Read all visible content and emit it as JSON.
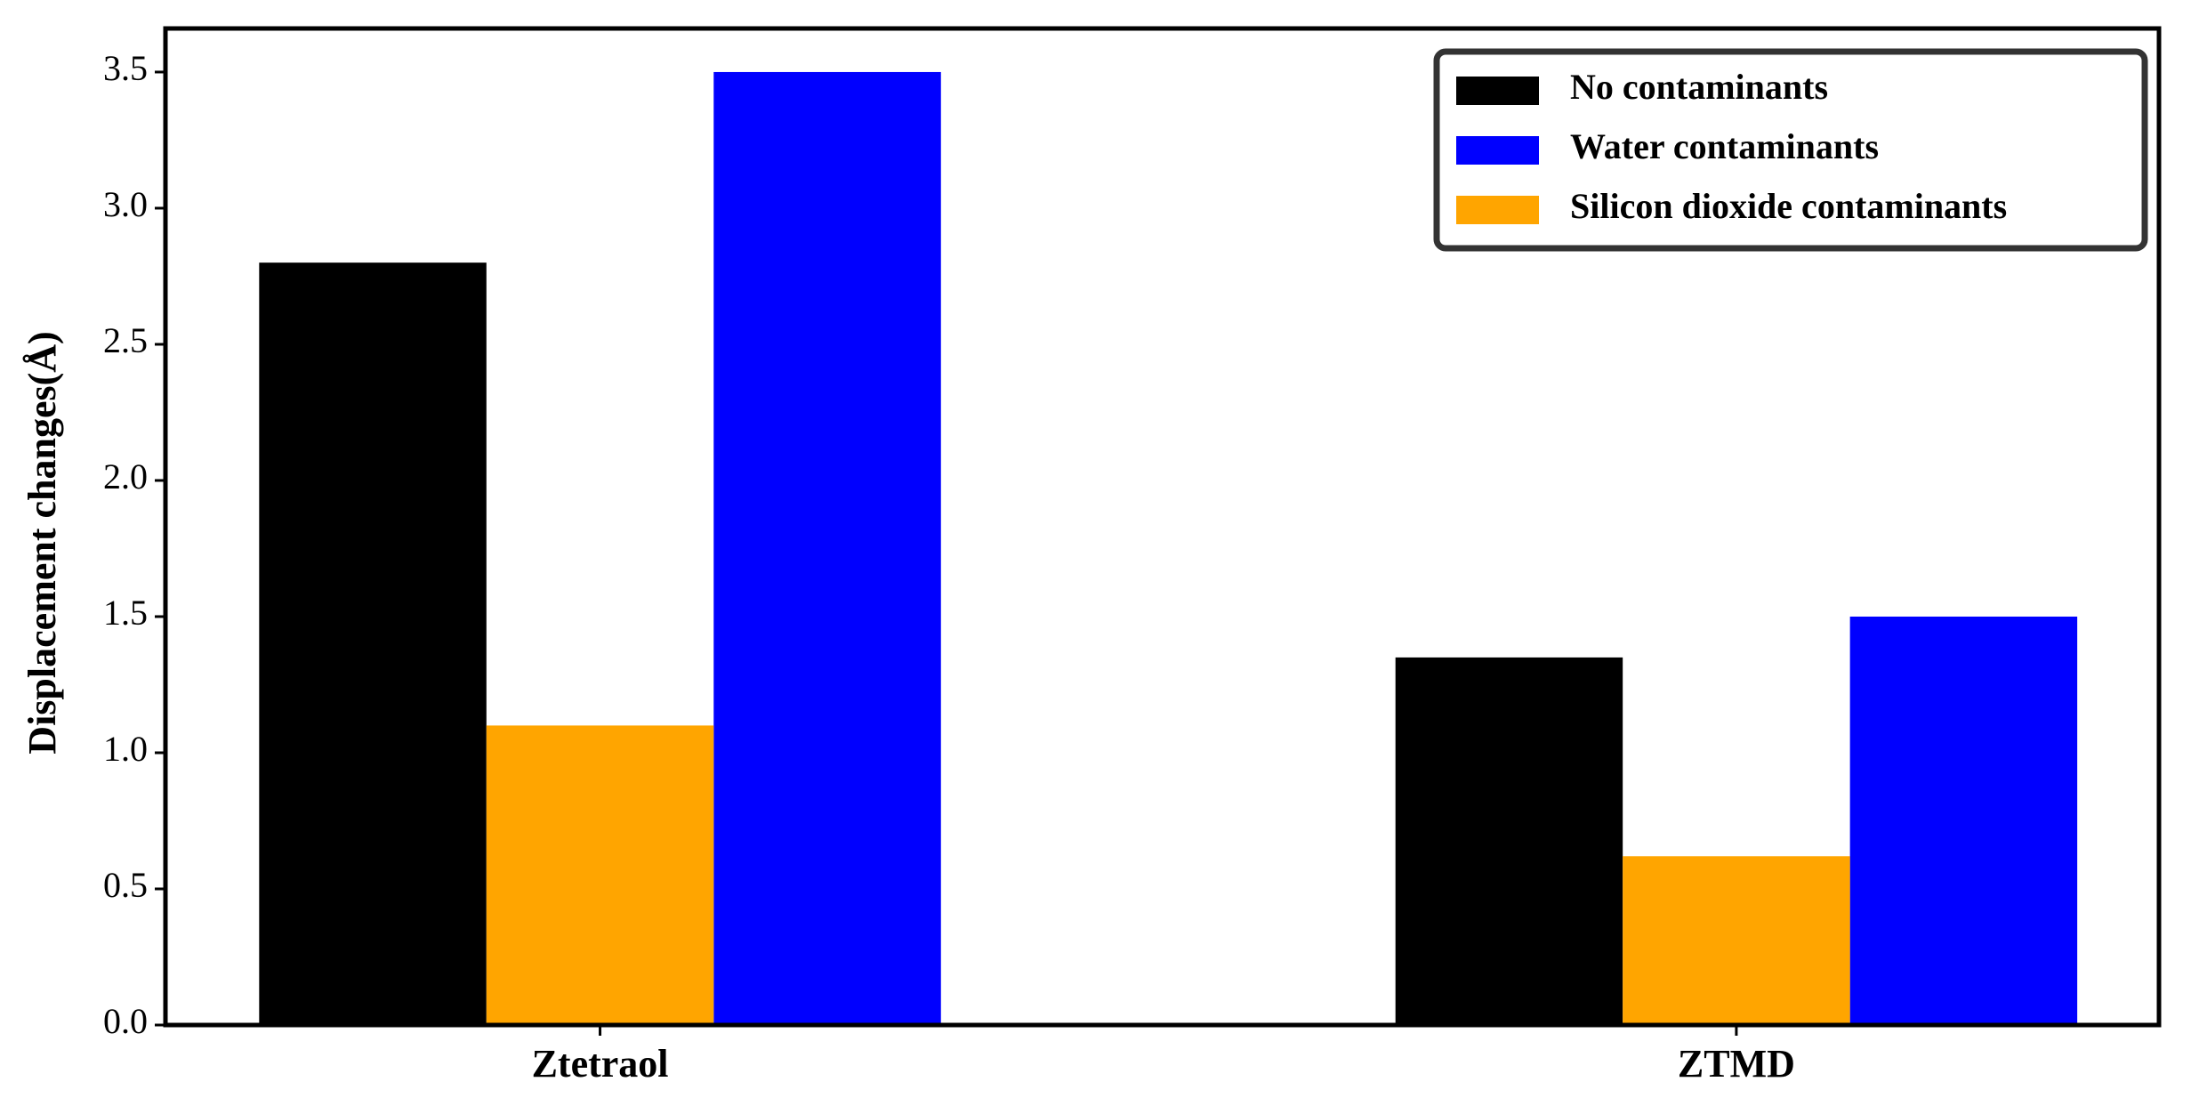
{
  "chart_data": {
    "type": "bar",
    "y_label": "Displacement changes(Å)",
    "categories": [
      "Ztetraol",
      "ZTMD"
    ],
    "series": [
      {
        "name": "No contaminants",
        "color": "#000000",
        "values": [
          2.8,
          1.35
        ]
      },
      {
        "name": "Water contaminants",
        "color": "#0000ff",
        "values": [
          3.5,
          1.5
        ]
      },
      {
        "name": "Silicon dioxide contaminants",
        "color": "#ffa500",
        "values": [
          1.1,
          0.62
        ]
      }
    ],
    "ylim": [
      0,
      3.66
    ],
    "yticks": [
      {
        "value": 0,
        "label": "0.0"
      },
      0.5,
      {
        "value": 1,
        "label": "1.0"
      },
      1.5,
      {
        "value": 2,
        "label": "2.0"
      },
      2.5,
      {
        "value": 3,
        "label": "3.0"
      },
      3.5
    ],
    "legend": "upper right"
  }
}
